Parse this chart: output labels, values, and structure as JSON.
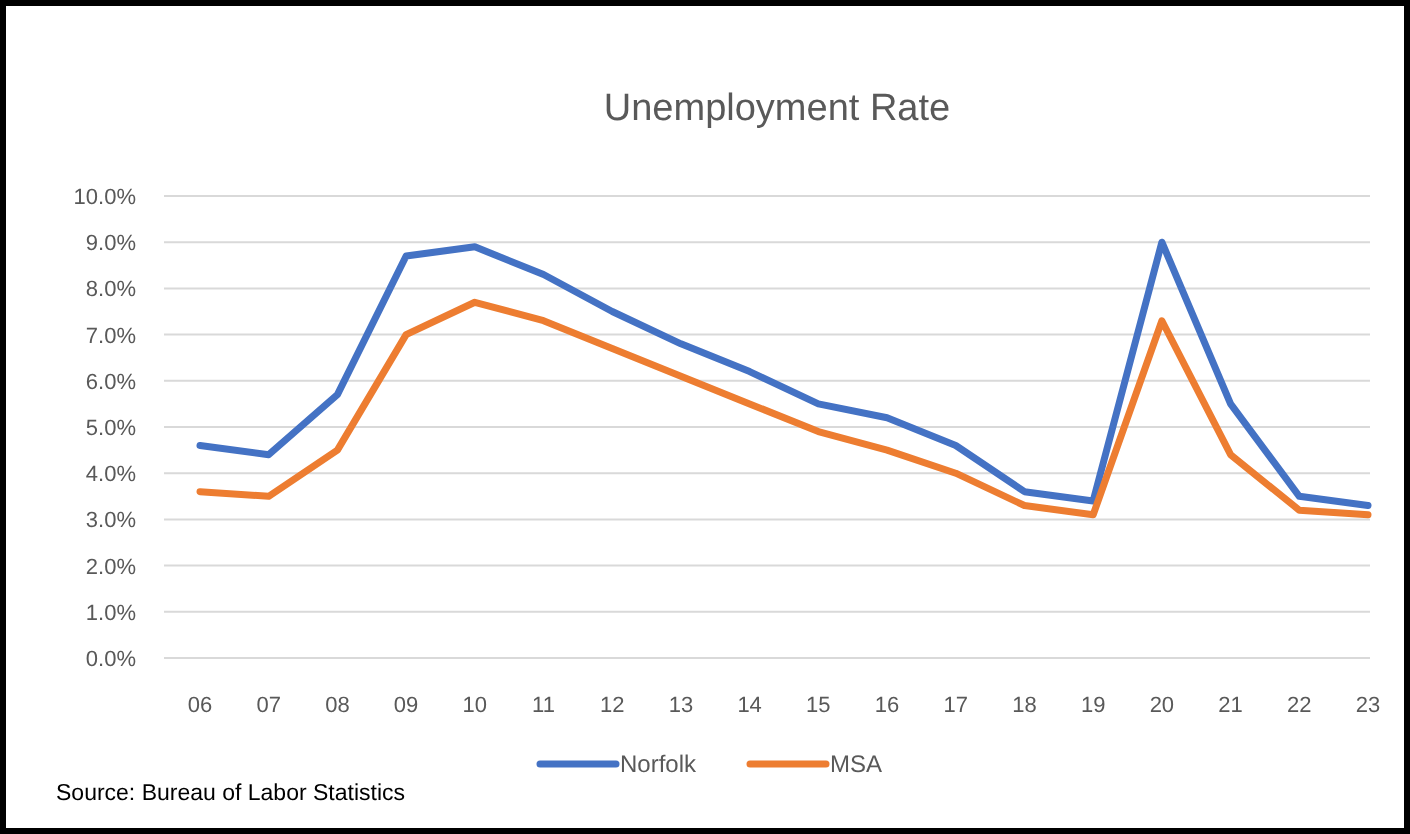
{
  "chart_data": {
    "type": "line",
    "title": "Unemployment Rate",
    "categories": [
      "06",
      "07",
      "08",
      "09",
      "10",
      "11",
      "12",
      "13",
      "14",
      "15",
      "16",
      "17",
      "18",
      "19",
      "20",
      "21",
      "22",
      "23"
    ],
    "series": [
      {
        "name": "Norfolk",
        "color": "#4472c4",
        "values": [
          4.6,
          4.4,
          5.7,
          8.7,
          8.9,
          8.3,
          7.5,
          6.8,
          6.2,
          5.5,
          5.2,
          4.6,
          3.6,
          3.4,
          9.0,
          5.5,
          3.5,
          3.3
        ]
      },
      {
        "name": "MSA",
        "color": "#ed7d31",
        "values": [
          3.6,
          3.5,
          4.5,
          7.0,
          7.7,
          7.3,
          6.7,
          6.1,
          5.5,
          4.9,
          4.5,
          4.0,
          3.3,
          3.1,
          7.3,
          4.4,
          3.2,
          3.1
        ]
      }
    ],
    "ylim": [
      0,
      10
    ],
    "yticks": [
      {
        "value": 0,
        "label": "0.0%"
      },
      {
        "value": 1,
        "label": "1.0%"
      },
      {
        "value": 2,
        "label": "2.0%"
      },
      {
        "value": 3,
        "label": "3.0%"
      },
      {
        "value": 4,
        "label": "4.0%"
      },
      {
        "value": 5,
        "label": "5.0%"
      },
      {
        "value": 6,
        "label": "6.0%"
      },
      {
        "value": 7,
        "label": "7.0%"
      },
      {
        "value": 8,
        "label": "8.0%"
      },
      {
        "value": 9,
        "label": "9.0%"
      },
      {
        "value": 10,
        "label": "10.0%"
      }
    ],
    "grid": "y",
    "legend": "bottom",
    "marker": "none",
    "line_style": "solid",
    "annotations": [
      "Source: Bureau of Labor Statistics"
    ]
  }
}
